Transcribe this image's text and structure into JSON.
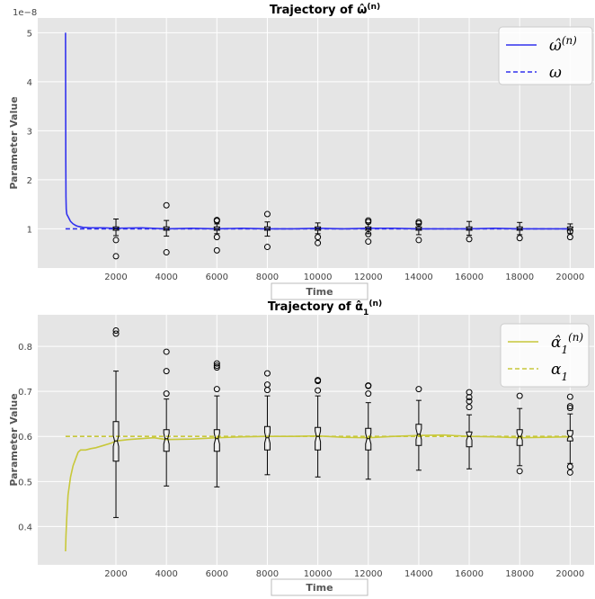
{
  "chart_data": [
    {
      "type": "line",
      "title": "Trajectory of ω̂",
      "title_sup": "(n)",
      "xlabel": "Time",
      "ylabel": "Parameter Value",
      "y_scale_label": "1e−8",
      "xlim": [
        -1100,
        20950
      ],
      "ylim": [
        0.2,
        5.3
      ],
      "grid": true,
      "legend_position": "top-right",
      "xticks": [
        2000,
        4000,
        6000,
        8000,
        10000,
        12000,
        14000,
        16000,
        18000,
        20000
      ],
      "yticks": [
        1,
        2,
        3,
        4,
        5
      ],
      "reference_value": 1.0,
      "series": [
        {
          "name": "ω̂",
          "name_sup": "(n)",
          "color": "#3333ee",
          "style": "solid",
          "x": [
            0,
            10,
            20,
            30,
            50,
            70,
            100,
            150,
            200,
            300,
            400,
            500,
            700,
            1000,
            1500,
            2000,
            3000,
            4000,
            5000,
            6000,
            7000,
            8000,
            9000,
            10000,
            11000,
            12000,
            13000,
            14000,
            15000,
            16000,
            17000,
            18000,
            19000,
            20000
          ],
          "y": [
            5.0,
            2.4,
            1.65,
            1.4,
            1.3,
            1.28,
            1.25,
            1.2,
            1.15,
            1.1,
            1.07,
            1.05,
            1.03,
            1.02,
            1.02,
            1.01,
            1.02,
            1.0,
            1.01,
            1.0,
            1.01,
            1.0,
            1.0,
            1.01,
            1.0,
            1.01,
            1.01,
            1.0,
            1.0,
            1.0,
            1.01,
            1.0,
            1.0,
            1.0
          ]
        },
        {
          "name": "ω",
          "color": "#3333ee",
          "style": "dashed",
          "x": [
            0,
            20000
          ],
          "y": [
            1.0,
            1.0
          ]
        }
      ],
      "boxplots": [
        {
          "x": 2000,
          "q1": 0.97,
          "median": 1.0,
          "q3": 1.04,
          "whisker_low": 0.86,
          "whisker_high": 1.2,
          "outliers": [
            0.77,
            0.44
          ]
        },
        {
          "x": 4000,
          "q1": 0.97,
          "median": 1.0,
          "q3": 1.04,
          "whisker_low": 0.85,
          "whisker_high": 1.17,
          "outliers": [
            1.48,
            0.52
          ]
        },
        {
          "x": 6000,
          "q1": 0.97,
          "median": 1.0,
          "q3": 1.04,
          "whisker_low": 0.9,
          "whisker_high": 1.1,
          "outliers": [
            1.18,
            1.16,
            0.83,
            0.56
          ]
        },
        {
          "x": 8000,
          "q1": 0.97,
          "median": 1.0,
          "q3": 1.04,
          "whisker_low": 0.85,
          "whisker_high": 1.14,
          "outliers": [
            1.3,
            0.63
          ]
        },
        {
          "x": 10000,
          "q1": 0.97,
          "median": 1.0,
          "q3": 1.04,
          "whisker_low": 0.9,
          "whisker_high": 1.12,
          "outliers": [
            0.83,
            0.71
          ]
        },
        {
          "x": 12000,
          "q1": 0.97,
          "median": 1.0,
          "q3": 1.04,
          "whisker_low": 0.9,
          "whisker_high": 1.12,
          "outliers": [
            1.17,
            1.14,
            0.89,
            0.74
          ]
        },
        {
          "x": 14000,
          "q1": 0.97,
          "median": 1.0,
          "q3": 1.04,
          "whisker_low": 0.88,
          "whisker_high": 1.1,
          "outliers": [
            1.14,
            1.11,
            0.77
          ]
        },
        {
          "x": 16000,
          "q1": 0.97,
          "median": 1.0,
          "q3": 1.04,
          "whisker_low": 0.87,
          "whisker_high": 1.15,
          "outliers": [
            0.79
          ]
        },
        {
          "x": 18000,
          "q1": 0.97,
          "median": 1.0,
          "q3": 1.04,
          "whisker_low": 0.88,
          "whisker_high": 1.13,
          "outliers": [
            0.81
          ]
        },
        {
          "x": 20000,
          "q1": 0.97,
          "median": 1.0,
          "q3": 1.04,
          "whisker_low": 0.9,
          "whisker_high": 1.1,
          "outliers": [
            0.95,
            0.83
          ]
        }
      ]
    },
    {
      "type": "line",
      "title": "Trajectory of α̂",
      "title_sub": "1",
      "title_sup": "(n)",
      "xlabel": "Time",
      "ylabel": "Parameter Value",
      "xlim": [
        -1100,
        20950
      ],
      "ylim": [
        0.315,
        0.87
      ],
      "grid": true,
      "legend_position": "top-right",
      "xticks": [
        2000,
        4000,
        6000,
        8000,
        10000,
        12000,
        14000,
        16000,
        18000,
        20000
      ],
      "yticks": [
        0.4,
        0.5,
        0.6,
        0.7,
        0.8
      ],
      "reference_value": 0.6,
      "series": [
        {
          "name": "α̂",
          "name_sub": "1",
          "name_sup": "(n)",
          "color": "#c8c83a",
          "style": "solid",
          "x": [
            0,
            20,
            50,
            100,
            200,
            300,
            400,
            500,
            600,
            800,
            1000,
            1200,
            1500,
            1800,
            2000,
            2500,
            3000,
            3500,
            4000,
            5000,
            6000,
            7000,
            8000,
            9000,
            10000,
            11000,
            12000,
            13000,
            14000,
            15000,
            16000,
            17000,
            18000,
            19000,
            20000
          ],
          "y": [
            0.345,
            0.38,
            0.42,
            0.47,
            0.51,
            0.535,
            0.55,
            0.565,
            0.57,
            0.57,
            0.573,
            0.575,
            0.58,
            0.585,
            0.59,
            0.593,
            0.595,
            0.597,
            0.593,
            0.594,
            0.597,
            0.599,
            0.6,
            0.6,
            0.601,
            0.598,
            0.597,
            0.6,
            0.602,
            0.603,
            0.6,
            0.599,
            0.597,
            0.598,
            0.599
          ]
        },
        {
          "name": "α",
          "name_sub": "1",
          "color": "#c8c83a",
          "style": "dashed",
          "x": [
            0,
            20000
          ],
          "y": [
            0.6,
            0.6
          ]
        }
      ],
      "boxplots": [
        {
          "x": 2000,
          "q1": 0.545,
          "median": 0.59,
          "q3": 0.633,
          "whisker_low": 0.42,
          "whisker_high": 0.745,
          "outliers": [
            0.835,
            0.828
          ]
        },
        {
          "x": 4000,
          "q1": 0.567,
          "median": 0.595,
          "q3": 0.615,
          "whisker_low": 0.49,
          "whisker_high": 0.683,
          "outliers": [
            0.788,
            0.745,
            0.695
          ]
        },
        {
          "x": 6000,
          "q1": 0.567,
          "median": 0.595,
          "q3": 0.615,
          "whisker_low": 0.488,
          "whisker_high": 0.69,
          "outliers": [
            0.762,
            0.757,
            0.753,
            0.705
          ]
        },
        {
          "x": 8000,
          "q1": 0.57,
          "median": 0.597,
          "q3": 0.622,
          "whisker_low": 0.515,
          "whisker_high": 0.69,
          "outliers": [
            0.74,
            0.715,
            0.703
          ]
        },
        {
          "x": 10000,
          "q1": 0.57,
          "median": 0.6,
          "q3": 0.62,
          "whisker_low": 0.51,
          "whisker_high": 0.69,
          "outliers": [
            0.725,
            0.723,
            0.702
          ]
        },
        {
          "x": 12000,
          "q1": 0.57,
          "median": 0.595,
          "q3": 0.618,
          "whisker_low": 0.505,
          "whisker_high": 0.675,
          "outliers": [
            0.713,
            0.712,
            0.695
          ]
        },
        {
          "x": 14000,
          "q1": 0.58,
          "median": 0.605,
          "q3": 0.627,
          "whisker_low": 0.525,
          "whisker_high": 0.68,
          "outliers": [
            0.705
          ]
        },
        {
          "x": 16000,
          "q1": 0.577,
          "median": 0.6,
          "q3": 0.61,
          "whisker_low": 0.528,
          "whisker_high": 0.648,
          "outliers": [
            0.698,
            0.687,
            0.678,
            0.665
          ]
        },
        {
          "x": 18000,
          "q1": 0.58,
          "median": 0.6,
          "q3": 0.615,
          "whisker_low": 0.535,
          "whisker_high": 0.662,
          "outliers": [
            0.69,
            0.523
          ]
        },
        {
          "x": 20000,
          "q1": 0.59,
          "median": 0.6,
          "q3": 0.613,
          "whisker_low": 0.54,
          "whisker_high": 0.65,
          "outliers": [
            0.688,
            0.667,
            0.663,
            0.533,
            0.52
          ]
        }
      ]
    }
  ]
}
